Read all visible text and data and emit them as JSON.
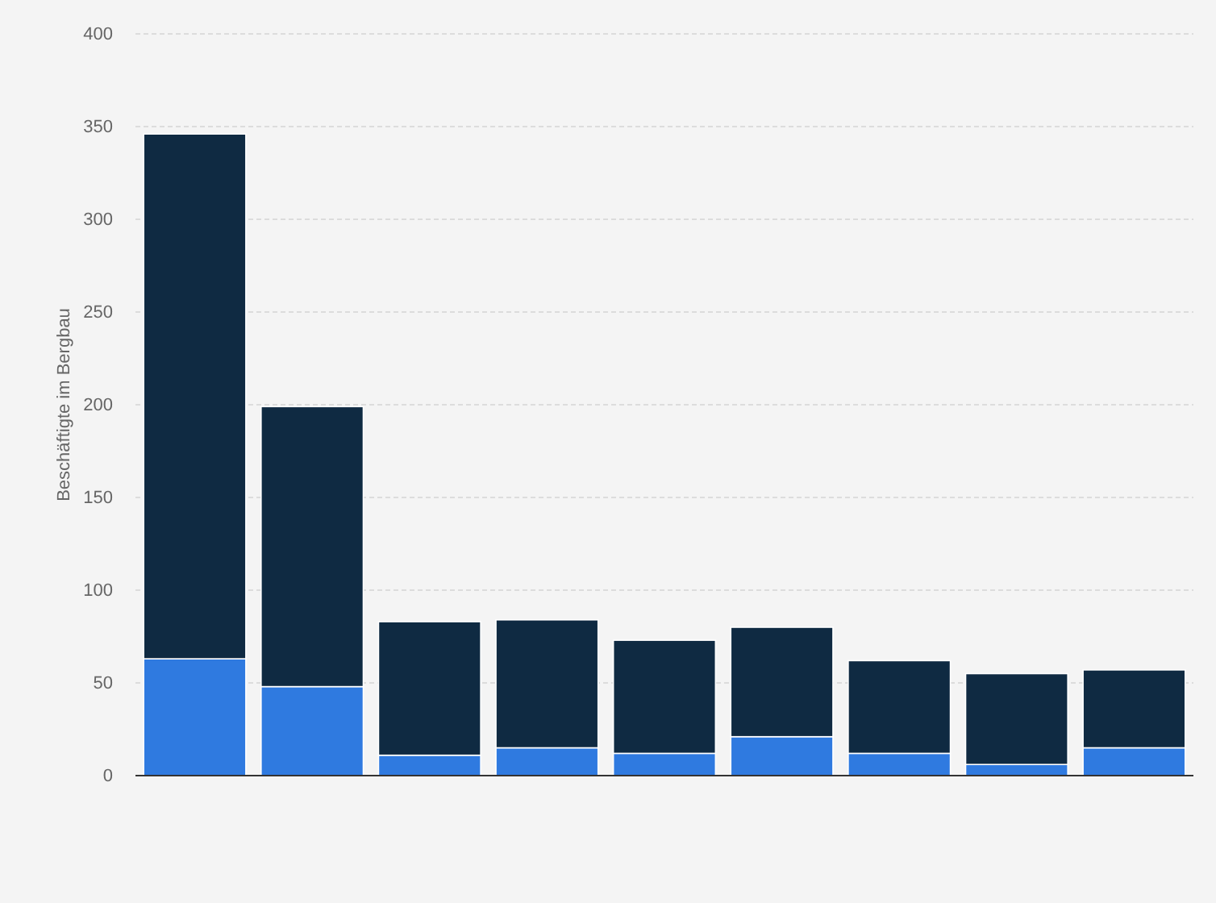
{
  "chart_data": {
    "type": "bar",
    "stacked": true,
    "ylabel": "Beschäftigte im Bergbau",
    "categories": [
      null,
      null,
      null,
      null,
      null,
      null,
      null,
      null,
      null
    ],
    "series": [
      {
        "color": "#2f7ae0",
        "values": [
          63,
          48,
          11,
          15,
          12,
          21,
          12,
          6,
          15
        ]
      },
      {
        "color": "#0f2a42",
        "values": [
          283,
          151,
          72,
          69,
          61,
          59,
          50,
          49,
          42
        ]
      }
    ],
    "ylim": [
      0,
      400
    ],
    "yticks": [
      0,
      50,
      100,
      150,
      200,
      250,
      300,
      350,
      400
    ],
    "grid": "y"
  }
}
